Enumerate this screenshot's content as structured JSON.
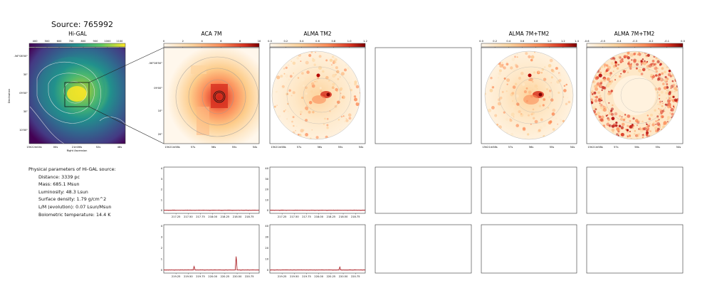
{
  "figure": {
    "source_title": "Source: 765992",
    "params_heading": "Physical parameters of Hi-GAL source:",
    "params": [
      "Distance: 3339 pc",
      "Mass: 685.1 Msun",
      "Luminosity: 48.3 Lsun",
      "Surface density: 1.79 g/cm^2",
      "L/M (evolution): 0.07 Lsun/Msun",
      "Bolometric temperature: 14.4 K"
    ]
  },
  "colors": {
    "viridis": [
      "#440154",
      "#3b528b",
      "#21918c",
      "#5ec962",
      "#fde725"
    ],
    "orrd": [
      "#fff7ec",
      "#fdd49e",
      "#fc8d59",
      "#d7301f",
      "#7f0000"
    ],
    "spectrum": "#a50f15",
    "contour": "#bbbbbb",
    "frame": "#333333"
  },
  "chart_data": [
    {
      "type": "heatmap",
      "title": "Hi-GAL",
      "colorbar_ticks": [
        "400",
        "500",
        "600",
        "700",
        "800",
        "900",
        "1000",
        "1100"
      ],
      "xlabel": "Right Ascension",
      "ylabel": "Declination",
      "x_tick_labels": [
        "15h22m04s",
        "00s",
        "21m56s",
        "52s",
        "48s"
      ],
      "y_tick_labels": [
        "-56°08'00\"",
        "30\"",
        "09'00\"",
        "30\"",
        "10'00\""
      ]
    },
    {
      "type": "heatmap",
      "title": "ACA 7M",
      "colorbar_ticks": [
        "0",
        "2",
        "4",
        "6",
        "8",
        "10"
      ],
      "x_tick_labels": [
        "15h21m58s",
        "57s",
        "56s",
        "55s",
        "54s"
      ],
      "y_tick_labels": [
        "-56°08'50\"",
        "09'00\"",
        "10\"",
        "20\""
      ]
    },
    {
      "type": "heatmap",
      "title": "ALMA TM2",
      "colorbar_ticks": [
        "0.0",
        "0.2",
        "0.4",
        "0.6",
        "0.8",
        "1.0",
        "1.2"
      ],
      "x_tick_labels": [
        "15h21m58s",
        "57s",
        "56s",
        "55s",
        "54s"
      ]
    },
    {
      "type": "heatmap",
      "title": "ALMA 7M+TM2",
      "colorbar_ticks": [
        "0.0",
        "0.2",
        "0.4",
        "0.6",
        "0.8",
        "1.0",
        "1.2",
        "1.4"
      ],
      "x_tick_labels": [
        "15h21m58s",
        "57s",
        "56s",
        "55s",
        "54s"
      ]
    },
    {
      "type": "heatmap",
      "title": "ALMA 7M+TM2",
      "colorbar_ticks": [
        "-0.6",
        "-0.5",
        "-0.4",
        "-0.3",
        "-0.2",
        "-0.1",
        "0.0"
      ],
      "x_tick_labels": [
        "15h21m58s",
        "57s",
        "56s",
        "55s",
        "54s"
      ]
    },
    {
      "type": "line",
      "title": "",
      "x_tick_labels": [
        "217.25",
        "217.50",
        "217.75",
        "218.00",
        "218.25",
        "218.50",
        "218.75"
      ],
      "y_tick_labels": [
        "0",
        "1",
        "2",
        "3",
        "4"
      ],
      "ylim": [
        0,
        4
      ],
      "series": [
        {
          "x": [
            217.0,
            218.95
          ],
          "y": [
            0.02,
            0.02
          ]
        }
      ]
    },
    {
      "type": "line",
      "title": "",
      "x_tick_labels": [
        "217.25",
        "217.50",
        "217.75",
        "218.00",
        "218.25",
        "218.50",
        "218.75"
      ],
      "y_tick_labels": [
        "0",
        "10",
        "20",
        "30",
        "40"
      ],
      "ylim": [
        0,
        40
      ],
      "series": [
        {
          "x": [
            217.0,
            218.95
          ],
          "y": [
            0.2,
            0.2
          ]
        }
      ]
    },
    {
      "type": "line",
      "title": "",
      "x_tick_labels": [
        "219.25",
        "219.50",
        "219.75",
        "220.00",
        "220.25",
        "220.50",
        "220.75"
      ],
      "y_tick_labels": [
        "0",
        "1",
        "2",
        "3",
        "4"
      ],
      "ylim": [
        0,
        4
      ],
      "series": [
        {
          "x": [
            219.0,
            219.6,
            219.62,
            219.64,
            220.46,
            220.48,
            220.5,
            220.95
          ],
          "y": [
            0.02,
            0.02,
            0.35,
            0.02,
            0.02,
            1.25,
            0.02,
            0.02
          ]
        }
      ]
    },
    {
      "type": "line",
      "title": "",
      "x_tick_labels": [
        "219.25",
        "219.50",
        "219.75",
        "220.00",
        "220.25",
        "220.50",
        "220.75"
      ],
      "y_tick_labels": [
        "0",
        "10",
        "20",
        "30",
        "40"
      ],
      "ylim": [
        0,
        40
      ],
      "series": [
        {
          "x": [
            219.0,
            220.41,
            220.43,
            220.45,
            220.95
          ],
          "y": [
            0.2,
            0.2,
            3.0,
            0.2,
            0.2
          ]
        }
      ]
    }
  ]
}
